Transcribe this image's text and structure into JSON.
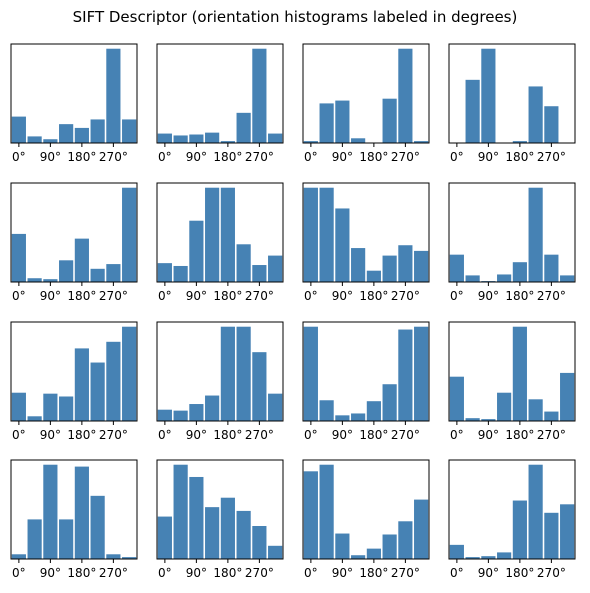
{
  "figure": {
    "title": "SIFT Descriptor (orientation histograms labeled in degrees)"
  },
  "colors": {
    "bar": "#4682b4",
    "axes": "#000000",
    "background": "#ffffff"
  },
  "chart_data": {
    "type": "bar",
    "layout": "4x4 grid of small bar charts",
    "title": "SIFT Descriptor (orientation histograms labeled in degrees)",
    "bins_degrees": [
      0,
      45,
      90,
      135,
      180,
      225,
      270,
      315
    ],
    "xticks": {
      "values": [
        0,
        90,
        180,
        270
      ],
      "labels": [
        "0°",
        "90°",
        "180°",
        "270°"
      ]
    },
    "xlim": [
      -22.5,
      337.5
    ],
    "yticks": "hidden",
    "grid": false,
    "legend": "none",
    "histograms": [
      [
        0.28,
        0.07,
        0.04,
        0.2,
        0.16,
        0.25,
        1.0,
        0.25
      ],
      [
        0.1,
        0.08,
        0.09,
        0.11,
        0.02,
        0.32,
        1.0,
        0.1
      ],
      [
        0.02,
        0.42,
        0.45,
        0.05,
        0.0,
        0.47,
        1.0,
        0.02
      ],
      [
        0.0,
        0.67,
        1.0,
        0.0,
        0.02,
        0.6,
        0.39,
        0.0
      ],
      [
        0.51,
        0.04,
        0.03,
        0.23,
        0.46,
        0.14,
        0.19,
        1.0
      ],
      [
        0.2,
        0.17,
        0.65,
        1.0,
        1.0,
        0.4,
        0.18,
        0.28
      ],
      [
        1.0,
        1.0,
        0.78,
        0.36,
        0.12,
        0.28,
        0.39,
        0.33
      ],
      [
        0.29,
        0.07,
        0.01,
        0.08,
        0.21,
        1.0,
        0.29,
        0.07
      ],
      [
        0.3,
        0.05,
        0.29,
        0.26,
        0.77,
        0.62,
        0.84,
        1.0
      ],
      [
        0.12,
        0.11,
        0.18,
        0.27,
        1.0,
        1.0,
        0.73,
        0.29
      ],
      [
        1.0,
        0.22,
        0.06,
        0.08,
        0.21,
        0.39,
        0.97,
        1.0
      ],
      [
        0.47,
        0.03,
        0.02,
        0.3,
        1.0,
        0.23,
        0.1,
        0.51
      ],
      [
        0.05,
        0.42,
        1.0,
        0.42,
        0.98,
        0.67,
        0.05,
        0.02
      ],
      [
        0.45,
        1.0,
        0.87,
        0.55,
        0.65,
        0.51,
        0.35,
        0.14
      ],
      [
        0.93,
        1.0,
        0.27,
        0.04,
        0.11,
        0.26,
        0.4,
        0.63
      ],
      [
        0.15,
        0.02,
        0.03,
        0.07,
        0.62,
        1.0,
        0.49,
        0.58
      ]
    ]
  }
}
